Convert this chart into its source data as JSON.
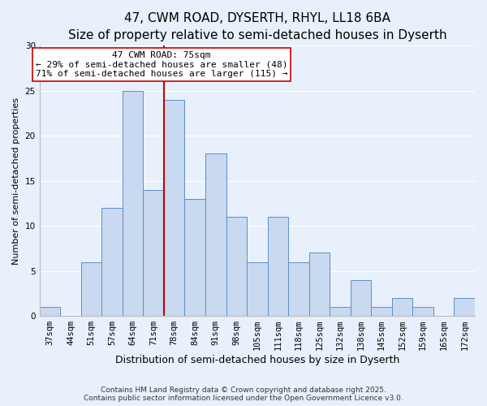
{
  "title": "47, CWM ROAD, DYSERTH, RHYL, LL18 6BA",
  "subtitle": "Size of property relative to semi-detached houses in Dyserth",
  "xlabel": "Distribution of semi-detached houses by size in Dyserth",
  "ylabel": "Number of semi-detached properties",
  "bar_labels": [
    "37sqm",
    "44sqm",
    "51sqm",
    "57sqm",
    "64sqm",
    "71sqm",
    "78sqm",
    "84sqm",
    "91sqm",
    "98sqm",
    "105sqm",
    "111sqm",
    "118sqm",
    "125sqm",
    "132sqm",
    "138sqm",
    "145sqm",
    "152sqm",
    "159sqm",
    "165sqm",
    "172sqm"
  ],
  "bar_heights": [
    1,
    0,
    6,
    12,
    25,
    14,
    24,
    13,
    18,
    11,
    6,
    11,
    6,
    7,
    1,
    4,
    1,
    2,
    1,
    0,
    2
  ],
  "bar_color": "#c9d9f0",
  "bar_edge_color": "#5b8fc9",
  "background_color": "#e8f0fb",
  "grid_color": "#ffffff",
  "marker_line_color": "#cc0000",
  "annotation_line1": "47 CWM ROAD: 75sqm",
  "annotation_line2": "← 29% of semi-detached houses are smaller (48)",
  "annotation_line3": "71% of semi-detached houses are larger (115) →",
  "annotation_box_color": "#ffffff",
  "annotation_box_edge": "#cc0000",
  "ylim": [
    0,
    30
  ],
  "yticks": [
    0,
    5,
    10,
    15,
    20,
    25,
    30
  ],
  "footer": "Contains HM Land Registry data © Crown copyright and database right 2025.\nContains public sector information licensed under the Open Government Licence v3.0.",
  "title_fontsize": 11,
  "xlabel_fontsize": 9,
  "ylabel_fontsize": 8,
  "tick_fontsize": 7.5,
  "footer_fontsize": 6.5,
  "annot_fontsize": 8
}
